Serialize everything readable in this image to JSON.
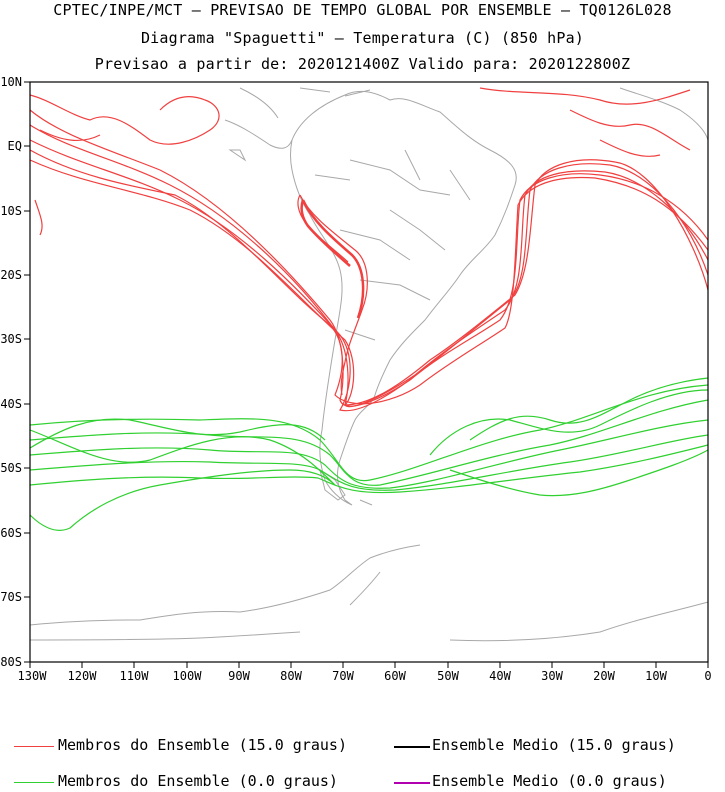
{
  "title_lines": [
    "CPTEC/INPE/MCT — PREVISAO DE TEMPO GLOBAL POR ENSEMBLE — TQ0126L028",
    "Diagrama \"Spaguetti\" — Temperatura (C) (850 hPa)",
    "Previsao a partir de: 2020121400Z  Valido para: 2020122800Z"
  ],
  "lat_labels": [
    "10N",
    "EQ",
    "10S",
    "20S",
    "30S",
    "40S",
    "50S",
    "60S",
    "70S",
    "80S"
  ],
  "lon_labels": [
    "130W",
    "120W",
    "110W",
    "100W",
    "90W",
    "80W",
    "70W",
    "60W",
    "50W",
    "40W",
    "30W",
    "20W",
    "10W",
    "0"
  ],
  "legend": [
    {
      "label": "Membros do Ensemble (15.0 graus)",
      "color": "#f04040"
    },
    {
      "label": "Ensemble Medio (15.0 graus)",
      "color": "#000000"
    },
    {
      "label": "Membros do Ensemble (0.0 graus)",
      "color": "#30d030"
    },
    {
      "label": "Ensemble Medio (0.0 graus)",
      "color": "#b000b0"
    }
  ],
  "colors": {
    "isotherm_15": "#f04040",
    "isotherm_0": "#30d030",
    "mean_15": "#000000",
    "mean_0": "#b000b0",
    "coast": "#a8a8a8"
  }
}
